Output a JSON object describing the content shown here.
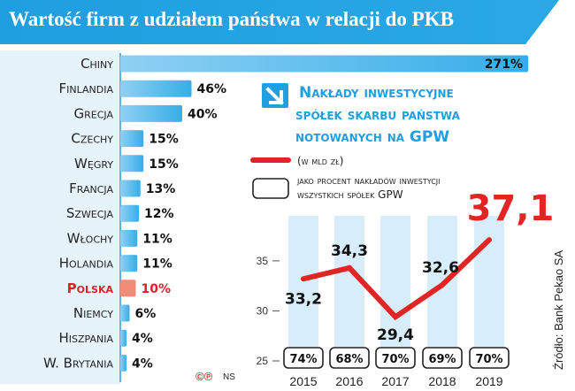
{
  "header": {
    "title": "Wartość firm z udziałem państwa w relacji do PKB"
  },
  "colors": {
    "accent": "#1f9fe0",
    "bar": "#35aee8",
    "bar_highlight": "#f08c78",
    "highlight_text": "#d9232d",
    "line": "#e32424",
    "column_bg": "#d7edfa"
  },
  "logo": {
    "symbols": "©℗",
    "ns": "NS"
  },
  "source": "Źródło: Bank Pekao SA",
  "chart_data": [
    {
      "type": "bar",
      "orientation": "horizontal",
      "categories": [
        "Chiny",
        "Finlandia",
        "Grecja",
        "Czechy",
        "Węgry",
        "Francja",
        "Szwecja",
        "Włochy",
        "Holandia",
        "Polska",
        "Niemcy",
        "Hiszpania",
        "W. Brytania"
      ],
      "values": [
        271,
        46,
        40,
        15,
        15,
        13,
        12,
        11,
        11,
        10,
        6,
        4,
        4
      ],
      "value_labels": [
        "271%",
        "46%",
        "40%",
        "15%",
        "15%",
        "13%",
        "12%",
        "11%",
        "11%",
        "10%",
        "6%",
        "4%",
        "4%"
      ],
      "highlight": "Polska"
    },
    {
      "type": "line",
      "title": "Nakłady inwestycyjne spółek skarbu państwa notowanych na GPW",
      "legend": [
        {
          "label": "(w mld zł)",
          "kind": "line"
        },
        {
          "label": "jako procent nakładów inwestycji wszystkich spółek GPW",
          "kind": "box"
        }
      ],
      "x": [
        "2015",
        "2016",
        "2017",
        "2018",
        "2019"
      ],
      "series": [
        {
          "values": [
            33.2,
            34.3,
            29.4,
            32.6,
            37.1
          ],
          "labels": [
            "33,2",
            "34,3",
            "29,4",
            "32,6",
            "37,1"
          ]
        }
      ],
      "percent_labels": [
        "74%",
        "68%",
        "70%",
        "69%",
        "70%"
      ],
      "yticks": [
        "25",
        "30",
        "35"
      ],
      "ylim": [
        25,
        39.5
      ],
      "grid": false
    }
  ]
}
